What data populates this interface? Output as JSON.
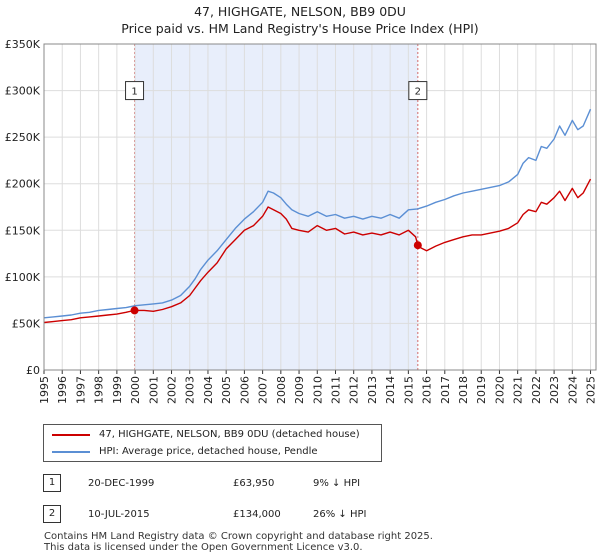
{
  "chart_data": {
    "type": "line",
    "title": "47, HIGHGATE, NELSON, BB9 0DU",
    "subtitle": "Price paid vs. HM Land Registry's House Price Index (HPI)",
    "xlabel": "",
    "ylabel": "",
    "xlim": [
      1995,
      2025.3
    ],
    "ylim": [
      0,
      350000
    ],
    "x_ticks": [
      1995,
      1996,
      1997,
      1998,
      1999,
      2000,
      2001,
      2002,
      2003,
      2004,
      2005,
      2006,
      2007,
      2008,
      2009,
      2010,
      2011,
      2012,
      2013,
      2014,
      2015,
      2016,
      2017,
      2018,
      2019,
      2020,
      2021,
      2022,
      2023,
      2024,
      2025
    ],
    "x_tick_labels": [
      "1995",
      "1996",
      "1997",
      "1998",
      "1999",
      "2000",
      "2001",
      "2002",
      "2003",
      "2004",
      "2005",
      "2006",
      "2007",
      "2008",
      "2009",
      "2010",
      "2011",
      "2012",
      "2013",
      "2014",
      "2015",
      "2016",
      "2017",
      "2018",
      "2019",
      "2020",
      "2021",
      "2022",
      "2023",
      "2024",
      "2025"
    ],
    "y_ticks": [
      0,
      50000,
      100000,
      150000,
      200000,
      250000,
      300000,
      350000
    ],
    "y_tick_labels": [
      "£0",
      "£50K",
      "£100K",
      "£150K",
      "£200K",
      "£250K",
      "£300K",
      "£350K"
    ],
    "grid": true,
    "shaded_span": [
      1999.97,
      2015.52
    ],
    "series": [
      {
        "name": "47, HIGHGATE, NELSON, BB9 0DU (detached house)",
        "color": "#cc0000",
        "x": [
          1995,
          1995.5,
          1996,
          1996.5,
          1997,
          1997.5,
          1998,
          1998.5,
          1999,
          1999.5,
          1999.97,
          2000.5,
          2001,
          2001.5,
          2002,
          2002.5,
          2003,
          2003.3,
          2003.6,
          2004,
          2004.5,
          2005,
          2005.5,
          2006,
          2006.5,
          2007,
          2007.3,
          2007.6,
          2008,
          2008.3,
          2008.6,
          2009,
          2009.5,
          2010,
          2010.5,
          2011,
          2011.5,
          2012,
          2012.5,
          2013,
          2013.5,
          2014,
          2014.5,
          2015,
          2015.4,
          2015.52,
          2015.7,
          2016,
          2016.5,
          2017,
          2017.5,
          2018,
          2018.5,
          2019,
          2019.5,
          2020,
          2020.5,
          2021,
          2021.3,
          2021.6,
          2022,
          2022.3,
          2022.6,
          2023,
          2023.3,
          2023.6,
          2024,
          2024.3,
          2024.6,
          2025
        ],
        "values": [
          51000,
          52000,
          53000,
          54000,
          56000,
          57000,
          58000,
          59000,
          60000,
          62000,
          63950,
          64000,
          63000,
          65000,
          68000,
          72000,
          80000,
          88000,
          96000,
          105000,
          115000,
          130000,
          140000,
          150000,
          155000,
          165000,
          175000,
          172000,
          168000,
          162000,
          152000,
          150000,
          148000,
          155000,
          150000,
          152000,
          146000,
          148000,
          145000,
          147000,
          145000,
          148000,
          145000,
          150000,
          143000,
          134000,
          131000,
          128000,
          133000,
          137000,
          140000,
          143000,
          145000,
          145000,
          147000,
          149000,
          152000,
          158000,
          167000,
          172000,
          170000,
          180000,
          178000,
          185000,
          192000,
          182000,
          195000,
          185000,
          190000,
          205000
        ]
      },
      {
        "name": "HPI: Average price, detached house, Pendle",
        "color": "#5b8fd4",
        "x": [
          1995,
          1995.5,
          1996,
          1996.5,
          1997,
          1997.5,
          1998,
          1998.5,
          1999,
          1999.5,
          2000,
          2000.5,
          2001,
          2001.5,
          2002,
          2002.5,
          2003,
          2003.3,
          2003.6,
          2004,
          2004.5,
          2005,
          2005.5,
          2006,
          2006.5,
          2007,
          2007.3,
          2007.6,
          2008,
          2008.3,
          2008.6,
          2009,
          2009.5,
          2010,
          2010.5,
          2011,
          2011.5,
          2012,
          2012.5,
          2013,
          2013.5,
          2014,
          2014.5,
          2015,
          2015.5,
          2016,
          2016.5,
          2017,
          2017.5,
          2018,
          2018.5,
          2019,
          2019.5,
          2020,
          2020.5,
          2021,
          2021.3,
          2021.6,
          2022,
          2022.3,
          2022.6,
          2023,
          2023.3,
          2023.6,
          2024,
          2024.3,
          2024.6,
          2025
        ],
        "values": [
          56000,
          57000,
          58000,
          59000,
          61000,
          62000,
          64000,
          65000,
          66000,
          67000,
          69000,
          70000,
          71000,
          72000,
          75000,
          80000,
          90000,
          98000,
          108000,
          118000,
          128000,
          140000,
          152000,
          162000,
          170000,
          180000,
          192000,
          190000,
          185000,
          178000,
          172000,
          168000,
          165000,
          170000,
          165000,
          167000,
          163000,
          165000,
          162000,
          165000,
          163000,
          167000,
          163000,
          172000,
          173000,
          176000,
          180000,
          183000,
          187000,
          190000,
          192000,
          194000,
          196000,
          198000,
          202000,
          210000,
          222000,
          228000,
          225000,
          240000,
          238000,
          248000,
          262000,
          252000,
          268000,
          258000,
          262000,
          280000
        ]
      }
    ],
    "annotations": [
      {
        "label": "1",
        "x": 1999.97,
        "value": 63950
      },
      {
        "label": "2",
        "x": 2015.52,
        "value": 134000
      }
    ]
  },
  "legend": {
    "property_label": "47, HIGHGATE, NELSON, BB9 0DU (detached house)",
    "hpi_label": "HPI: Average price, detached house, Pendle"
  },
  "sales": [
    {
      "num": "1",
      "date": "20-DEC-1999",
      "price": "£63,950",
      "pct": "9% ↓ HPI"
    },
    {
      "num": "2",
      "date": "10-JUL-2015",
      "price": "£134,000",
      "pct": "26% ↓ HPI"
    }
  ],
  "footer": {
    "line1": "Contains HM Land Registry data © Crown copyright and database right 2025.",
    "line2": "This data is licensed under the Open Government Licence v3.0."
  },
  "colors": {
    "property": "#cc0000",
    "hpi": "#5b8fd4",
    "shade": "#e8eefb",
    "grid": "#dddddd"
  }
}
